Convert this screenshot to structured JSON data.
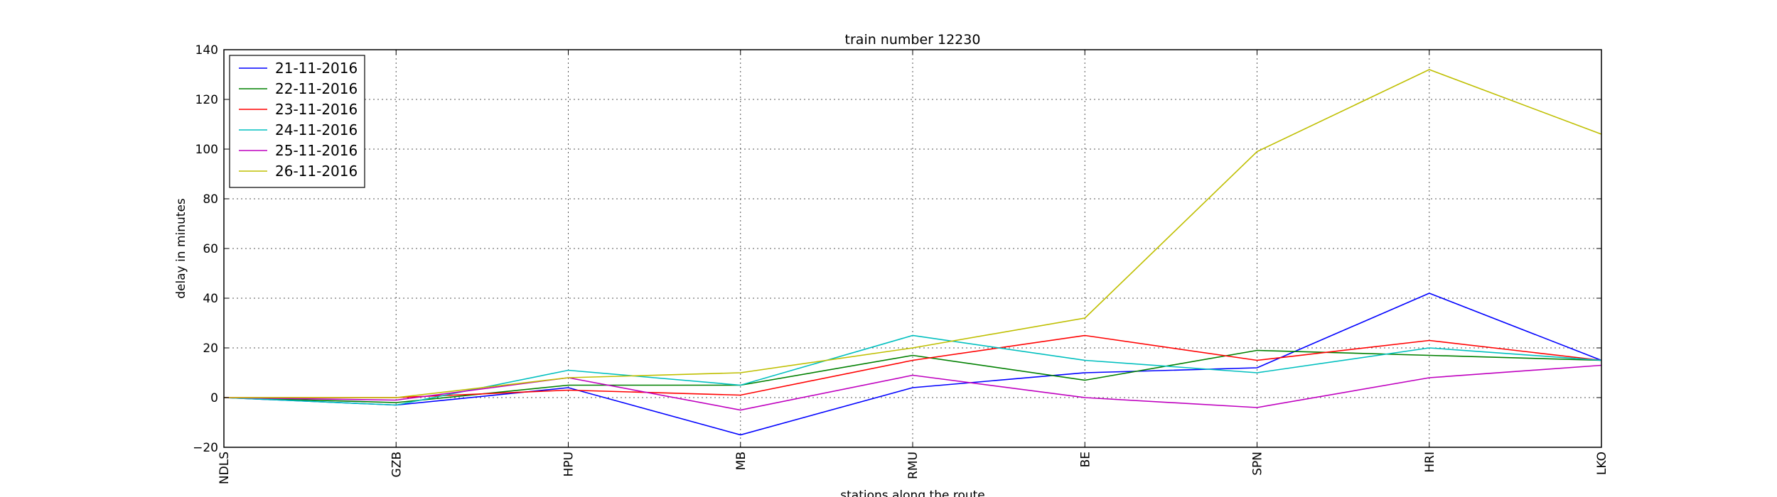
{
  "chart_data": {
    "type": "line",
    "title": "train number 12230",
    "xlabel": "stations along the route",
    "ylabel": "delay in minutes",
    "categories": [
      "NDLS",
      "GZB",
      "HPU",
      "MB",
      "RMU",
      "BE",
      "SPN",
      "HRI",
      "LKO"
    ],
    "ylim": [
      -20,
      140
    ],
    "yticks": [
      -20,
      0,
      20,
      40,
      60,
      80,
      100,
      120,
      140
    ],
    "grid": true,
    "legend_position": "top-left",
    "series": [
      {
        "name": "21-11-2016",
        "color": "#0000ff",
        "values": [
          0,
          -3,
          4,
          -15,
          4,
          10,
          12,
          42,
          15
        ]
      },
      {
        "name": "22-11-2016",
        "color": "#008000",
        "values": [
          0,
          -2,
          5,
          5,
          17,
          7,
          19,
          17,
          15
        ]
      },
      {
        "name": "23-11-2016",
        "color": "#ff0000",
        "values": [
          0,
          0,
          3,
          1,
          15,
          25,
          15,
          23,
          15
        ]
      },
      {
        "name": "24-11-2016",
        "color": "#00bfbf",
        "values": [
          0,
          -3,
          11,
          5,
          25,
          15,
          10,
          20,
          15
        ]
      },
      {
        "name": "25-11-2016",
        "color": "#bf00bf",
        "values": [
          0,
          -1,
          8,
          -5,
          9,
          0,
          -4,
          8,
          13
        ]
      },
      {
        "name": "26-11-2016",
        "color": "#bfbf00",
        "values": [
          0,
          0,
          8,
          10,
          20,
          32,
          99,
          132,
          106
        ]
      }
    ]
  }
}
